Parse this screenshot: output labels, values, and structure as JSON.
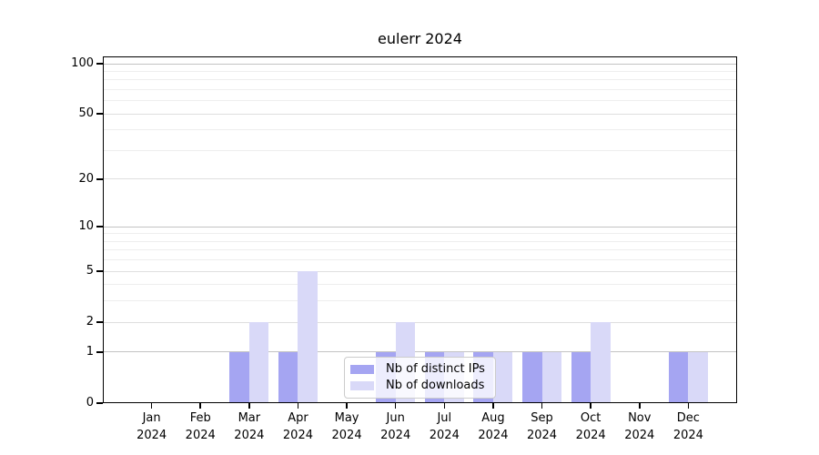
{
  "chart_data": {
    "type": "bar",
    "title": "eulerr 2024",
    "categories": [
      "Jan",
      "Feb",
      "Mar",
      "Apr",
      "May",
      "Jun",
      "Jul",
      "Aug",
      "Sep",
      "Oct",
      "Nov",
      "Dec"
    ],
    "category_year": "2024",
    "series": [
      {
        "name": "Nb of distinct IPs",
        "key": "distinct-ips",
        "color": "#a5a5f2",
        "values": [
          0,
          0,
          1,
          1,
          0,
          1,
          1,
          1,
          1,
          1,
          0,
          1
        ]
      },
      {
        "name": "Nb of downloads",
        "key": "downloads",
        "color": "#d9d9f8",
        "values": [
          0,
          0,
          2,
          5,
          0,
          2,
          1,
          1,
          1,
          2,
          0,
          1
        ]
      }
    ],
    "xlabel": "",
    "ylabel": "",
    "yscale": "log1p",
    "ylim": [
      0,
      110
    ],
    "yticks_labeled": [
      0,
      1,
      2,
      5,
      10,
      20,
      50,
      100
    ],
    "gridlines": {
      "strong": [
        1,
        10,
        100
      ],
      "medium": [
        2,
        5,
        20,
        50
      ],
      "minor": [
        3,
        4,
        6,
        7,
        8,
        9,
        30,
        40,
        60,
        70,
        80,
        90
      ]
    },
    "grid": true,
    "legend_position": "lower center"
  },
  "colors": {
    "background": "#ffffff",
    "axis": "#000000",
    "text": "#000000",
    "grid_strong": "#c3c3c3",
    "grid_medium": "#dfdfdf",
    "grid_minor": "#eeeeee",
    "bar_distinct_ips": "#a5a5f2",
    "bar_downloads": "#d9d9f8",
    "legend_border": "#cccccc"
  }
}
